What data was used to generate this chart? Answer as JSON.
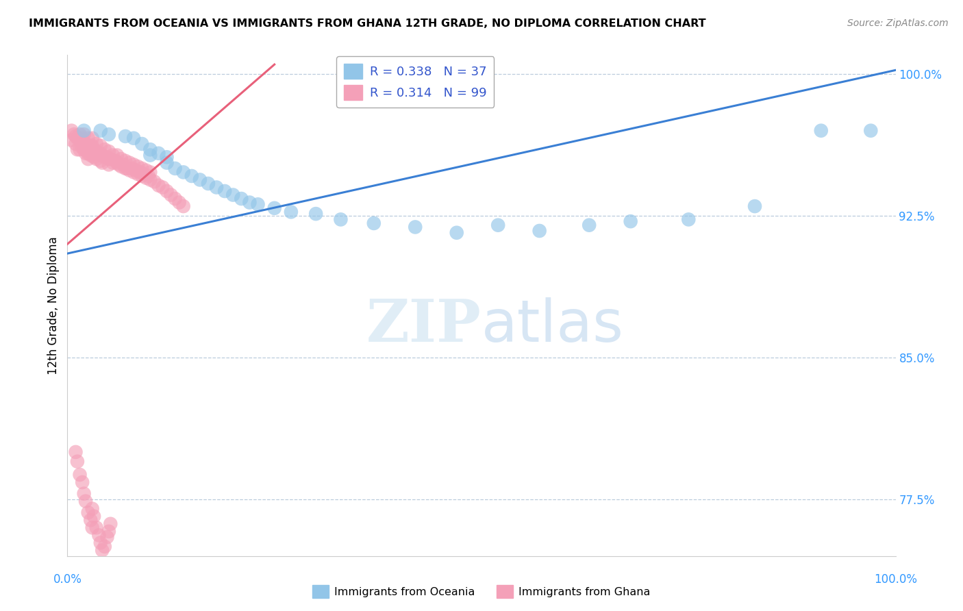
{
  "title": "IMMIGRANTS FROM OCEANIA VS IMMIGRANTS FROM GHANA 12TH GRADE, NO DIPLOMA CORRELATION CHART",
  "source": "Source: ZipAtlas.com",
  "ylabel": "12th Grade, No Diploma",
  "ytick_labels": [
    "77.5%",
    "85.0%",
    "92.5%",
    "100.0%"
  ],
  "ytick_values": [
    0.775,
    0.85,
    0.925,
    1.0
  ],
  "legend_label1": "Immigrants from Oceania",
  "legend_label2": "Immigrants from Ghana",
  "R1": 0.338,
  "N1": 37,
  "R2": 0.314,
  "N2": 99,
  "color_oceania": "#92C5E8",
  "color_ghana": "#F4A0B8",
  "line_color_oceania": "#3A7FD4",
  "line_color_ghana": "#E8607A",
  "oceania_line_x0": 0.0,
  "oceania_line_y0": 0.905,
  "oceania_line_x1": 1.0,
  "oceania_line_y1": 1.002,
  "ghana_line_x0": 0.0,
  "ghana_line_y0": 0.91,
  "ghana_line_x1": 0.25,
  "ghana_line_y1": 1.005,
  "xlim": [
    0.0,
    1.0
  ],
  "ylim": [
    0.745,
    1.01
  ],
  "oceania_x": [
    0.02,
    0.04,
    0.05,
    0.07,
    0.08,
    0.09,
    0.1,
    0.1,
    0.11,
    0.12,
    0.12,
    0.13,
    0.14,
    0.15,
    0.16,
    0.17,
    0.18,
    0.19,
    0.2,
    0.21,
    0.22,
    0.23,
    0.25,
    0.27,
    0.3,
    0.33,
    0.37,
    0.42,
    0.47,
    0.52,
    0.57,
    0.63,
    0.68,
    0.75,
    0.83,
    0.91,
    0.97
  ],
  "oceania_y": [
    0.97,
    0.97,
    0.968,
    0.967,
    0.966,
    0.963,
    0.96,
    0.957,
    0.958,
    0.956,
    0.953,
    0.95,
    0.948,
    0.946,
    0.944,
    0.942,
    0.94,
    0.938,
    0.936,
    0.934,
    0.932,
    0.931,
    0.929,
    0.927,
    0.926,
    0.923,
    0.921,
    0.919,
    0.916,
    0.92,
    0.917,
    0.92,
    0.922,
    0.923,
    0.93,
    0.97,
    0.97
  ],
  "ghana_x": [
    0.005,
    0.005,
    0.008,
    0.01,
    0.01,
    0.012,
    0.012,
    0.015,
    0.015,
    0.015,
    0.018,
    0.018,
    0.02,
    0.02,
    0.02,
    0.022,
    0.022,
    0.025,
    0.025,
    0.025,
    0.025,
    0.028,
    0.028,
    0.03,
    0.03,
    0.03,
    0.032,
    0.032,
    0.035,
    0.035,
    0.035,
    0.038,
    0.04,
    0.04,
    0.04,
    0.042,
    0.042,
    0.045,
    0.045,
    0.048,
    0.05,
    0.05,
    0.05,
    0.052,
    0.055,
    0.055,
    0.058,
    0.06,
    0.06,
    0.062,
    0.065,
    0.065,
    0.068,
    0.07,
    0.07,
    0.072,
    0.075,
    0.075,
    0.078,
    0.08,
    0.08,
    0.082,
    0.085,
    0.085,
    0.088,
    0.09,
    0.09,
    0.092,
    0.095,
    0.095,
    0.098,
    0.1,
    0.1,
    0.105,
    0.11,
    0.115,
    0.12,
    0.125,
    0.13,
    0.135,
    0.14,
    0.01,
    0.012,
    0.015,
    0.018,
    0.02,
    0.022,
    0.025,
    0.028,
    0.03,
    0.03,
    0.032,
    0.035,
    0.038,
    0.04,
    0.042,
    0.045,
    0.048,
    0.05,
    0.052
  ],
  "ghana_y": [
    0.97,
    0.965,
    0.968,
    0.967,
    0.963,
    0.966,
    0.96,
    0.968,
    0.965,
    0.96,
    0.966,
    0.961,
    0.968,
    0.964,
    0.96,
    0.963,
    0.958,
    0.966,
    0.962,
    0.958,
    0.955,
    0.962,
    0.957,
    0.966,
    0.962,
    0.958,
    0.96,
    0.956,
    0.963,
    0.959,
    0.955,
    0.958,
    0.962,
    0.958,
    0.954,
    0.957,
    0.953,
    0.96,
    0.956,
    0.956,
    0.959,
    0.955,
    0.952,
    0.955,
    0.957,
    0.953,
    0.954,
    0.957,
    0.953,
    0.952,
    0.955,
    0.951,
    0.952,
    0.954,
    0.95,
    0.95,
    0.953,
    0.949,
    0.95,
    0.952,
    0.948,
    0.949,
    0.951,
    0.947,
    0.948,
    0.95,
    0.946,
    0.947,
    0.949,
    0.945,
    0.946,
    0.948,
    0.944,
    0.943,
    0.941,
    0.94,
    0.938,
    0.936,
    0.934,
    0.932,
    0.93,
    0.8,
    0.795,
    0.788,
    0.784,
    0.778,
    0.774,
    0.768,
    0.764,
    0.76,
    0.77,
    0.766,
    0.76,
    0.756,
    0.752,
    0.748,
    0.75,
    0.755,
    0.758,
    0.762
  ]
}
